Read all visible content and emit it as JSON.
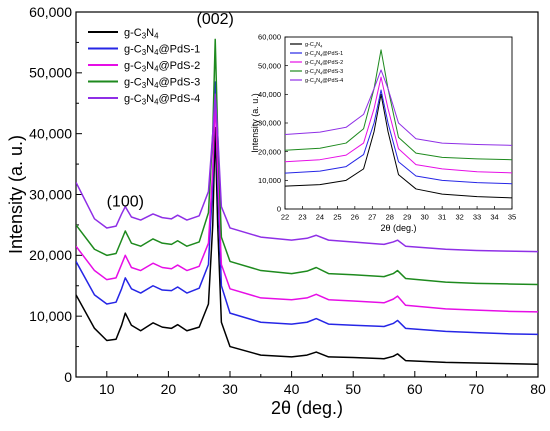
{
  "chart_data": [
    {
      "type": "line",
      "xlabel": "2θ (deg.)",
      "ylabel": "Intensity (a. u.)",
      "xlim": [
        5,
        80
      ],
      "ylim": [
        0,
        60000
      ],
      "x_ticks": [
        "10",
        "20",
        "30",
        "40",
        "50",
        "60",
        "70",
        "80"
      ],
      "y_ticks": [
        "0",
        "10,000",
        "20,000",
        "30,000",
        "40,000",
        "50,000",
        "60,000"
      ],
      "grid": false,
      "legend_placement": "top-left",
      "annotations": [
        {
          "text": "(100)",
          "x": 13,
          "y": 28000
        },
        {
          "text": "(002)",
          "x": 27.6,
          "y": 58000
        }
      ],
      "series": [
        {
          "name": "g-C3N4",
          "label_main": "g-C",
          "sub1": "3",
          "mid": "N",
          "sub2": "4",
          "suffix": "",
          "color": "#000000",
          "points": [
            [
              5,
              13500
            ],
            [
              8,
              8000
            ],
            [
              10,
              6000
            ],
            [
              11.5,
              6200
            ],
            [
              12.4,
              8500
            ],
            [
              13,
              10500
            ],
            [
              14,
              8500
            ],
            [
              15.5,
              7600
            ],
            [
              17.5,
              8900
            ],
            [
              19,
              8200
            ],
            [
              20.5,
              8000
            ],
            [
              21.5,
              8600
            ],
            [
              23,
              7600
            ],
            [
              25,
              8200
            ],
            [
              26.5,
              12000
            ],
            [
              27.2,
              25000
            ],
            [
              27.6,
              41000
            ],
            [
              28,
              25000
            ],
            [
              28.6,
              9000
            ],
            [
              30,
              5000
            ],
            [
              35,
              3600
            ],
            [
              40,
              3300
            ],
            [
              42.5,
              3600
            ],
            [
              44,
              4100
            ],
            [
              46,
              3300
            ],
            [
              50,
              3200
            ],
            [
              55,
              3000
            ],
            [
              56.5,
              3400
            ],
            [
              57.2,
              3800
            ],
            [
              58.5,
              2700
            ],
            [
              65,
              2400
            ],
            [
              70,
              2300
            ],
            [
              75,
              2200
            ],
            [
              80,
              2100
            ]
          ]
        },
        {
          "name": "g-C3N4@PdS-1",
          "label_main": "g-C",
          "sub1": "3",
          "mid": "N",
          "sub2": "4",
          "suffix": "@PdS-1",
          "color": "#2626e6",
          "points": [
            [
              5,
              19000
            ],
            [
              8,
              13500
            ],
            [
              10,
              12000
            ],
            [
              11.5,
              12300
            ],
            [
              12.4,
              14500
            ],
            [
              13,
              16300
            ],
            [
              14,
              14500
            ],
            [
              15.5,
              13800
            ],
            [
              17.5,
              15000
            ],
            [
              19,
              14300
            ],
            [
              20.5,
              14200
            ],
            [
              21.5,
              14800
            ],
            [
              23,
              13800
            ],
            [
              25,
              14600
            ],
            [
              26.5,
              18500
            ],
            [
              27.2,
              32000
            ],
            [
              27.6,
              48500
            ],
            [
              28,
              32000
            ],
            [
              28.6,
              15000
            ],
            [
              30,
              10500
            ],
            [
              35,
              9000
            ],
            [
              40,
              8700
            ],
            [
              42.5,
              9000
            ],
            [
              44,
              9600
            ],
            [
              46,
              8700
            ],
            [
              50,
              8500
            ],
            [
              55,
              8300
            ],
            [
              56.5,
              8800
            ],
            [
              57.2,
              9300
            ],
            [
              58.5,
              8000
            ],
            [
              65,
              7500
            ],
            [
              70,
              7300
            ],
            [
              75,
              7100
            ],
            [
              80,
              7000
            ]
          ]
        },
        {
          "name": "g-C3N4@PdS-2",
          "label_main": "g-C",
          "sub1": "3",
          "mid": "N",
          "sub2": "4",
          "suffix": "@PdS-2",
          "color": "#e60ee6",
          "points": [
            [
              5,
              21500
            ],
            [
              8,
              17500
            ],
            [
              10,
              16000
            ],
            [
              11.5,
              16300
            ],
            [
              12.4,
              18500
            ],
            [
              13,
              20000
            ],
            [
              14,
              18000
            ],
            [
              15.5,
              17500
            ],
            [
              17.5,
              18700
            ],
            [
              19,
              18000
            ],
            [
              20.5,
              17800
            ],
            [
              21.5,
              18400
            ],
            [
              23,
              17500
            ],
            [
              25,
              18200
            ],
            [
              26.5,
              22000
            ],
            [
              27.2,
              34000
            ],
            [
              27.6,
              45500
            ],
            [
              28,
              34000
            ],
            [
              28.6,
              18500
            ],
            [
              30,
              14500
            ],
            [
              35,
              13000
            ],
            [
              40,
              12700
            ],
            [
              42.5,
              13000
            ],
            [
              44,
              13600
            ],
            [
              46,
              12700
            ],
            [
              50,
              12500
            ],
            [
              55,
              12200
            ],
            [
              56.5,
              12800
            ],
            [
              57.2,
              13300
            ],
            [
              58.5,
              11800
            ],
            [
              65,
              11200
            ],
            [
              70,
              11000
            ],
            [
              75,
              10800
            ],
            [
              80,
              10700
            ]
          ]
        },
        {
          "name": "g-C3N4@PdS-3",
          "label_main": "g-C",
          "sub1": "3",
          "mid": "N",
          "sub2": "4",
          "suffix": "@PdS-3",
          "color": "#1e8a1e",
          "points": [
            [
              5,
              25000
            ],
            [
              8,
              21000
            ],
            [
              10,
              20000
            ],
            [
              11.5,
              20300
            ],
            [
              12.4,
              22500
            ],
            [
              13,
              24000
            ],
            [
              14,
              22000
            ],
            [
              15.5,
              21500
            ],
            [
              17.5,
              22700
            ],
            [
              19,
              22000
            ],
            [
              20.5,
              21800
            ],
            [
              21.5,
              22400
            ],
            [
              23,
              21500
            ],
            [
              25,
              22200
            ],
            [
              26.5,
              27000
            ],
            [
              27.2,
              40000
            ],
            [
              27.6,
              55500
            ],
            [
              28,
              40000
            ],
            [
              28.6,
              23000
            ],
            [
              30,
              19000
            ],
            [
              35,
              17500
            ],
            [
              40,
              17000
            ],
            [
              42.5,
              17400
            ],
            [
              44,
              18000
            ],
            [
              46,
              17000
            ],
            [
              50,
              16800
            ],
            [
              55,
              16500
            ],
            [
              56.5,
              17000
            ],
            [
              57.2,
              17500
            ],
            [
              58.5,
              16200
            ],
            [
              65,
              15600
            ],
            [
              70,
              15400
            ],
            [
              75,
              15300
            ],
            [
              80,
              15200
            ]
          ]
        },
        {
          "name": "g-C3N4@PdS-4",
          "label_main": "g-C",
          "sub1": "3",
          "mid": "N",
          "sub2": "4",
          "suffix": "@PdS-4",
          "color": "#8f2fe6",
          "points": [
            [
              5,
              32000
            ],
            [
              8,
              26000
            ],
            [
              10,
              24500
            ],
            [
              11.5,
              24800
            ],
            [
              12.4,
              26800
            ],
            [
              13,
              28000
            ],
            [
              14,
              26300
            ],
            [
              15.5,
              25800
            ],
            [
              17.5,
              26800
            ],
            [
              19,
              26200
            ],
            [
              20.5,
              26000
            ],
            [
              21.5,
              26600
            ],
            [
              23,
              25800
            ],
            [
              25,
              26500
            ],
            [
              26.5,
              30500
            ],
            [
              27.2,
              40000
            ],
            [
              27.6,
              46500
            ],
            [
              28,
              40000
            ],
            [
              28.6,
              28000
            ],
            [
              30,
              24500
            ],
            [
              35,
              23000
            ],
            [
              40,
              22500
            ],
            [
              42.5,
              22800
            ],
            [
              44,
              23300
            ],
            [
              46,
              22500
            ],
            [
              50,
              22200
            ],
            [
              55,
              21800
            ],
            [
              56.5,
              22200
            ],
            [
              57.2,
              22500
            ],
            [
              58.5,
              21500
            ],
            [
              65,
              21000
            ],
            [
              70,
              20800
            ],
            [
              75,
              20700
            ],
            [
              80,
              20600
            ]
          ]
        }
      ]
    },
    {
      "type": "line",
      "xlabel": "2θ (deg.)",
      "ylabel": "Intensity (a. u.)",
      "xlim": [
        22,
        35
      ],
      "ylim": [
        0,
        60000
      ],
      "x_ticks": [
        "22",
        "23",
        "24",
        "25",
        "26",
        "27",
        "28",
        "29",
        "30",
        "31",
        "32",
        "33",
        "34",
        "35"
      ],
      "y_ticks": [
        "0",
        "10,000",
        "20,000",
        "30,000",
        "40,000",
        "50,000",
        "60,000"
      ],
      "grid": false,
      "legend_placement": "top-left",
      "series": [
        {
          "name": "g-C3N4",
          "label_main": "g-C",
          "sub1": "3",
          "mid": "N",
          "sub2": "4",
          "suffix": "",
          "color": "#000000",
          "points": [
            [
              22,
              8000
            ],
            [
              24,
              8500
            ],
            [
              25.5,
              10000
            ],
            [
              26.5,
              14000
            ],
            [
              27.1,
              27000
            ],
            [
              27.5,
              40000
            ],
            [
              27.9,
              27000
            ],
            [
              28.5,
              12000
            ],
            [
              29.5,
              7000
            ],
            [
              31,
              5200
            ],
            [
              33,
              4300
            ],
            [
              35,
              3900
            ]
          ]
        },
        {
          "name": "g-C3N4@PdS-1",
          "label_main": "g-C",
          "sub1": "3",
          "mid": "N",
          "sub2": "4",
          "suffix": "@PdS-1",
          "color": "#2626e6",
          "points": [
            [
              22,
              12500
            ],
            [
              24,
              13200
            ],
            [
              25.5,
              14800
            ],
            [
              26.5,
              19000
            ],
            [
              27.1,
              30000
            ],
            [
              27.5,
              41500
            ],
            [
              27.9,
              30000
            ],
            [
              28.5,
              16500
            ],
            [
              29.5,
              11500
            ],
            [
              31,
              10000
            ],
            [
              33,
              9200
            ],
            [
              35,
              8800
            ]
          ]
        },
        {
          "name": "g-C3N4@PdS-2",
          "label_main": "g-C",
          "sub1": "3",
          "mid": "N",
          "sub2": "4",
          "suffix": "@PdS-2",
          "color": "#e60ee6",
          "points": [
            [
              22,
              16500
            ],
            [
              24,
              17200
            ],
            [
              25.5,
              18800
            ],
            [
              26.5,
              23000
            ],
            [
              27.1,
              35000
            ],
            [
              27.5,
              46000
            ],
            [
              27.9,
              35000
            ],
            [
              28.5,
              21000
            ],
            [
              29.5,
              15500
            ],
            [
              31,
              14000
            ],
            [
              33,
              13000
            ],
            [
              35,
              12600
            ]
          ]
        },
        {
          "name": "g-C3N4@PdS-3",
          "label_main": "g-C",
          "sub1": "3",
          "mid": "N",
          "sub2": "4",
          "suffix": "@PdS-3",
          "color": "#1e8a1e",
          "points": [
            [
              22,
              20500
            ],
            [
              24,
              21200
            ],
            [
              25.5,
              23000
            ],
            [
              26.5,
              28000
            ],
            [
              27.1,
              42000
            ],
            [
              27.5,
              55500
            ],
            [
              27.9,
              42000
            ],
            [
              28.5,
              25000
            ],
            [
              29.5,
              19500
            ],
            [
              31,
              18000
            ],
            [
              33,
              17500
            ],
            [
              35,
              17200
            ]
          ]
        },
        {
          "name": "g-C3N4@PdS-4",
          "label_main": "g-C",
          "sub1": "3",
          "mid": "N",
          "sub2": "4",
          "suffix": "@PdS-4",
          "color": "#8f2fe6",
          "points": [
            [
              22,
              26000
            ],
            [
              24,
              26800
            ],
            [
              25.5,
              28500
            ],
            [
              26.5,
              33000
            ],
            [
              27.1,
              42000
            ],
            [
              27.5,
              48500
            ],
            [
              27.9,
              42000
            ],
            [
              28.5,
              30000
            ],
            [
              29.5,
              24500
            ],
            [
              31,
              23000
            ],
            [
              33,
              22500
            ],
            [
              35,
              22200
            ]
          ]
        }
      ]
    }
  ]
}
